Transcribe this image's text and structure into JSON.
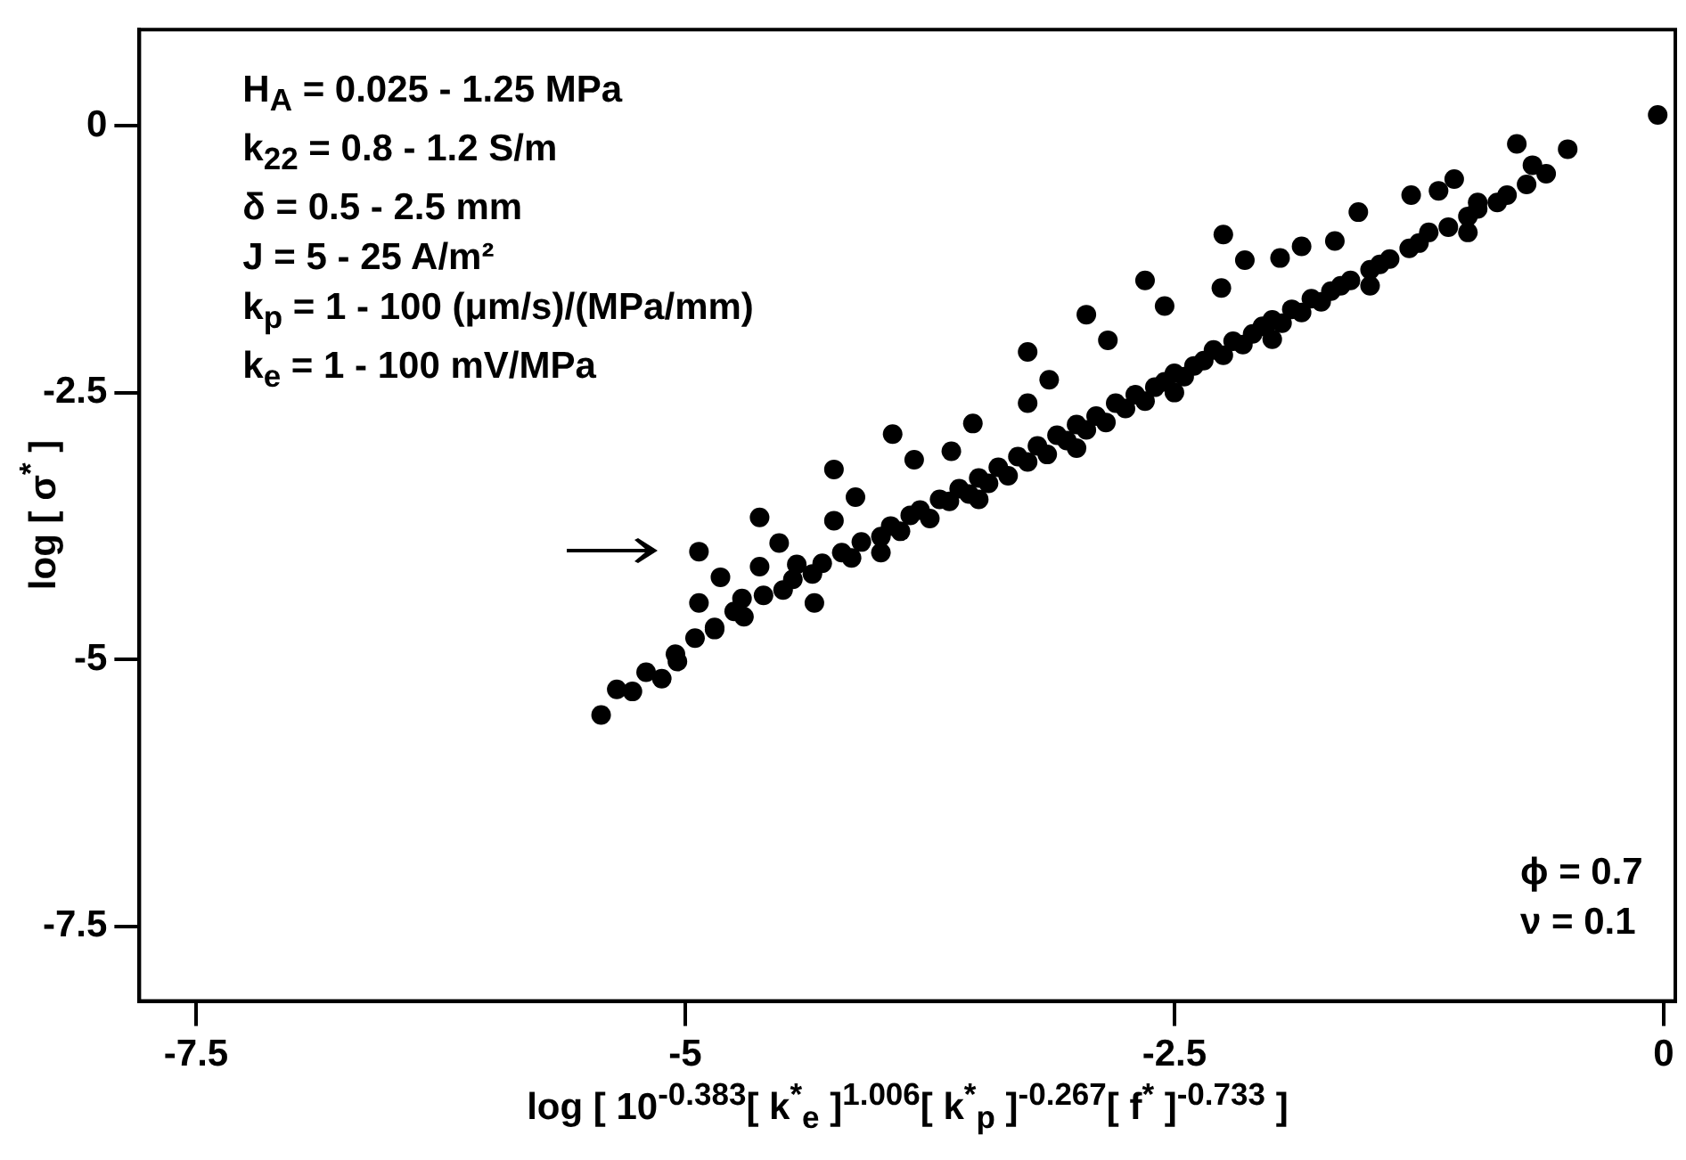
{
  "chart_data": {
    "type": "scatter",
    "xlabel": "log [ 10$^{-0.383}$[ k$^{*}$$_{e}$ ]$^{1.006}$[ k$^{*}$$_{p}$ ]$^{-0.267}$[ f$^{*}$ ]$^{-0.733}$ ]",
    "ylabel": "log [ σ$^{*}$ ]",
    "annotations": [
      "H$_{A}$ = 0.025 - 1.25  MPa",
      "k$_{22}$ = 0.8 - 1.2 S/m",
      "δ = 0.5 - 2.5 mm",
      "J = 5 - 25 A/m²",
      "k$_{p}$ = 1 - 100 (μm/s)/(MPa/mm)",
      "k$_{e}$ = 1 - 100 mV/MPa",
      "ϕ = 0.7",
      "ν = 0.1"
    ],
    "xlim": [
      -7.79,
      0.06
    ],
    "ylim": [
      -8.2,
      0.9
    ],
    "xticks": [
      -7.5,
      -5,
      -2.5,
      0
    ],
    "yticks": [
      -7.5,
      -5,
      -2.5,
      0
    ],
    "grid": false,
    "legend": false,
    "marker": "circle",
    "series": [
      {
        "color": "#000000",
        "x": [
          -5.43,
          -5.27,
          -5.12,
          -4.93,
          -4.82,
          -4.93,
          -4.62,
          -4.52,
          -4.71,
          -4.24,
          -4.13,
          -3.94,
          -3.83,
          -3.53,
          -3.64,
          -4.24,
          -4.62,
          -4.43,
          -4.34,
          -5.04,
          -4.85,
          -0.03,
          -0.49,
          -0.75,
          -0.67,
          -1.07,
          -1.15,
          -1.29,
          -1.56,
          -2.25,
          -2.14,
          -1.96,
          -1.85,
          -1.68,
          -2.65,
          -2.55,
          -2.95,
          -2.84,
          -3.25,
          -3.14,
          -3.25,
          -2.26,
          -0.95,
          -5.35,
          -5.2,
          -5.05,
          -4.95,
          -4.85,
          -4.75,
          -4.7,
          -4.6,
          -4.5,
          -4.45,
          -4.35,
          -4.3,
          -4.2,
          -4.15,
          -4.1,
          -4.0,
          -3.95,
          -3.9,
          -3.85,
          -3.8,
          -3.75,
          -3.7,
          -3.65,
          -3.6,
          -3.55,
          -3.5,
          -3.45,
          -3.4,
          -3.35,
          -3.3,
          -3.25,
          -3.2,
          -3.15,
          -3.1,
          -3.05,
          -3.0,
          -2.95,
          -2.9,
          -2.85,
          -2.8,
          -2.75,
          -2.7,
          -2.65,
          -2.6,
          -2.55,
          -2.5,
          -2.45,
          -2.4,
          -2.35,
          -2.3,
          -2.25,
          -2.2,
          -2.15,
          -2.1,
          -2.05,
          -2.0,
          -1.95,
          -1.9,
          -1.85,
          -1.8,
          -1.75,
          -1.7,
          -1.65,
          -1.6,
          -1.5,
          -1.45,
          -1.4,
          -1.3,
          -1.25,
          -1.2,
          -1.1,
          -1.0,
          -0.95,
          -0.85,
          -0.8,
          -0.7,
          -0.6,
          -4.0,
          -3.5,
          -3.0,
          -2.5,
          -2.0,
          -1.5,
          -1.0
        ],
        "values": [
          -5.52,
          -5.3,
          -5.18,
          -3.99,
          -4.23,
          -4.47,
          -3.67,
          -3.91,
          -4.43,
          -3.22,
          -3.48,
          -2.89,
          -3.13,
          -2.79,
          -3.05,
          -3.7,
          -4.13,
          -4.11,
          -4.47,
          -5.02,
          -4.7,
          0.1,
          -0.22,
          -0.17,
          -0.37,
          -0.5,
          -0.61,
          -0.65,
          -0.81,
          -1.02,
          -1.26,
          -1.24,
          -1.13,
          -1.08,
          -1.45,
          -1.69,
          -1.77,
          -2.01,
          -2.12,
          -2.38,
          -2.6,
          -1.52,
          -0.72,
          -5.28,
          -5.12,
          -4.95,
          -4.8,
          -4.72,
          -4.55,
          -4.6,
          -4.4,
          -4.35,
          -4.25,
          -4.2,
          -4.1,
          -4.0,
          -4.05,
          -3.9,
          -3.85,
          -3.75,
          -3.8,
          -3.65,
          -3.6,
          -3.68,
          -3.5,
          -3.52,
          -3.4,
          -3.45,
          -3.3,
          -3.35,
          -3.2,
          -3.28,
          -3.1,
          -3.15,
          -3.0,
          -3.08,
          -2.9,
          -2.95,
          -2.8,
          -2.85,
          -2.72,
          -2.78,
          -2.6,
          -2.65,
          -2.52,
          -2.58,
          -2.45,
          -2.4,
          -2.32,
          -2.35,
          -2.25,
          -2.2,
          -2.1,
          -2.15,
          -2.02,
          -2.05,
          -1.95,
          -1.88,
          -1.82,
          -1.85,
          -1.72,
          -1.75,
          -1.62,
          -1.65,
          -1.55,
          -1.5,
          -1.45,
          -1.35,
          -1.3,
          -1.25,
          -1.15,
          -1.1,
          -1.0,
          -0.95,
          -0.85,
          -0.78,
          -0.72,
          -0.65,
          -0.55,
          -0.45,
          -4.0,
          -3.5,
          -3.02,
          -2.5,
          -2.0,
          -1.5,
          -1.0
        ]
      }
    ]
  }
}
